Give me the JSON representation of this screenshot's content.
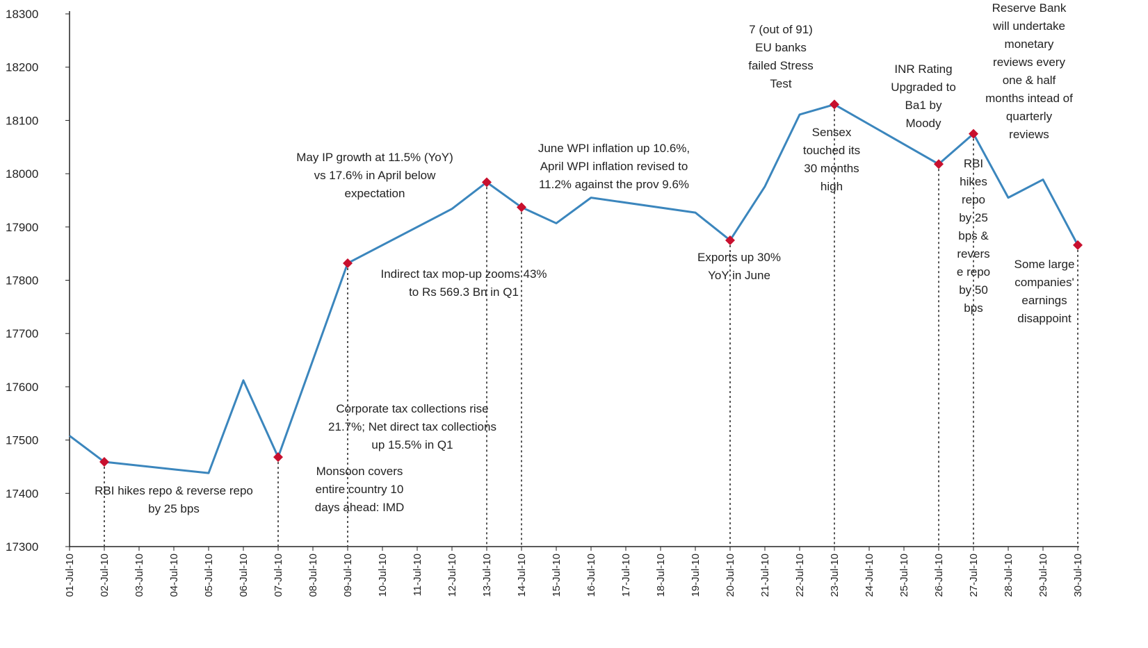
{
  "chart_data": {
    "type": "line",
    "categories": [
      "01-Jul-10",
      "02-Jul-10",
      "03-Jul-10",
      "04-Jul-10",
      "05-Jul-10",
      "06-Jul-10",
      "07-Jul-10",
      "08-Jul-10",
      "09-Jul-10",
      "10-Jul-10",
      "11-Jul-10",
      "12-Jul-10",
      "13-Jul-10",
      "14-Jul-10",
      "15-Jul-10",
      "16-Jul-10",
      "17-Jul-10",
      "18-Jul-10",
      "19-Jul-10",
      "20-Jul-10",
      "21-Jul-10",
      "22-Jul-10",
      "23-Jul-10",
      "24-Jul-10",
      "25-Jul-10",
      "26-Jul-10",
      "27-Jul-10",
      "28-Jul-10",
      "29-Jul-10",
      "30-Jul-10"
    ],
    "series": [
      {
        "values": [
          17508,
          17459,
          null,
          null,
          17438,
          17612,
          17468,
          null,
          17832,
          null,
          null,
          17934,
          17984,
          17937,
          17907,
          17955,
          null,
          null,
          17927,
          17875,
          17976,
          18111,
          18130,
          null,
          null,
          18018,
          18075,
          17955,
          17989,
          17866
        ]
      }
    ],
    "markers": [
      "02-Jul-10",
      "07-Jul-10",
      "09-Jul-10",
      "13-Jul-10",
      "14-Jul-10",
      "20-Jul-10",
      "23-Jul-10",
      "26-Jul-10",
      "27-Jul-10",
      "30-Jul-10"
    ],
    "ylim": [
      17300,
      18300
    ],
    "yticks": [
      17300,
      17400,
      17500,
      17600,
      17700,
      17800,
      17900,
      18000,
      18100,
      18200,
      18300
    ],
    "line_color": "#3b86bd",
    "marker_color": "#c8102e",
    "grid": false,
    "annotations": [
      {
        "id": "ann-rbi-repo-25",
        "date": "02-Jul-10",
        "text": "RBI hikes repo & reverse repo\nby 25 bps"
      },
      {
        "id": "ann-monsoon",
        "date": "07-Jul-10",
        "text": "Monsoon covers\nentire country 10\ndays ahead: IMD"
      },
      {
        "id": "ann-corporate-tax",
        "date": "09-Jul-10",
        "text": "Corporate tax collections rise\n21.7%; Net direct tax collections\nup 15.5% in Q1"
      },
      {
        "id": "ann-indirect-tax",
        "date": "09-Jul-10",
        "text": "Indirect tax mop-up zooms 43%\nto Rs 569.3 Bn in Q1"
      },
      {
        "id": "ann-may-ip",
        "date": "13-Jul-10",
        "text": "May IP growth at 11.5% (YoY)\nvs 17.6% in April below\nexpectation"
      },
      {
        "id": "ann-june-wpi",
        "date": "14-Jul-10",
        "text": "June WPI inflation up 10.6%,\nApril WPI inflation revised to\n11.2% against the prov 9.6%"
      },
      {
        "id": "ann-exports",
        "date": "20-Jul-10",
        "text": "Exports up 30%\nYoY in June"
      },
      {
        "id": "ann-eu-banks",
        "date": "23-Jul-10",
        "text": "7 (out of 91)\nEU banks\nfailed Stress\nTest"
      },
      {
        "id": "ann-sensex-high",
        "date": "23-Jul-10",
        "text": "Sensex\ntouched its\n30 months\nhigh"
      },
      {
        "id": "ann-inr-rating",
        "date": "26-Jul-10",
        "text": "INR Rating\nUpgraded to\nBa1 by\nMoody"
      },
      {
        "id": "ann-reserve-bank",
        "date": "27-Jul-10",
        "text": "Reserve Bank\nwill undertake\nmonetary\nreviews every\none & half\nmonths intead of\nquarterly\nreviews"
      },
      {
        "id": "ann-rbi-repo-reverse-50",
        "date": "27-Jul-10",
        "text": "RBI\nhikes\nrepo\nby 25\nbps &\nrevers\ne repo\nby 50\nbps"
      },
      {
        "id": "ann-large-companies",
        "date": "30-Jul-10",
        "text": "Some large\ncompanies'\nearnings\ndisappoint"
      }
    ]
  }
}
